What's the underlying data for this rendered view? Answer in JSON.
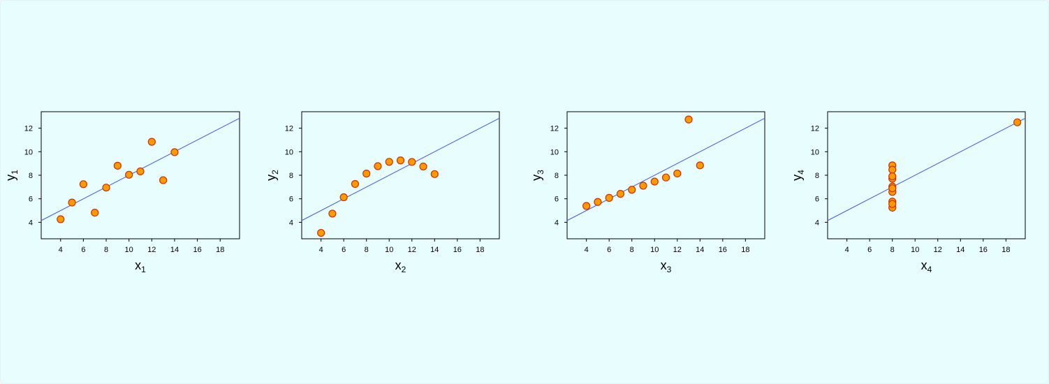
{
  "colors": {
    "background": "#e8fdfd",
    "marker_fill": "#ff9900",
    "marker_stroke": "#cc3300",
    "fit_line": "#4455ff",
    "axes": "#000000"
  },
  "chart_data": [
    {
      "type": "scatter",
      "xlabel": "x",
      "xlabel_sub": "1",
      "ylabel": "y",
      "ylabel_sub": "1",
      "xlim": [
        2.3,
        19.7
      ],
      "ylim": [
        2.6,
        13.4
      ],
      "xticks": [
        4,
        6,
        8,
        10,
        12,
        14,
        16,
        18
      ],
      "yticks": [
        4,
        6,
        8,
        10,
        12
      ],
      "grid": false,
      "x": [
        10,
        8,
        13,
        9,
        11,
        14,
        6,
        4,
        12,
        7,
        5
      ],
      "y": [
        8.04,
        6.95,
        7.58,
        8.81,
        8.33,
        9.96,
        7.24,
        4.26,
        10.84,
        4.82,
        5.68
      ],
      "fit_line": {
        "slope": 0.5,
        "intercept": 3.0
      }
    },
    {
      "type": "scatter",
      "xlabel": "x",
      "xlabel_sub": "2",
      "ylabel": "y",
      "ylabel_sub": "2",
      "xlim": [
        2.3,
        19.7
      ],
      "ylim": [
        2.6,
        13.4
      ],
      "xticks": [
        4,
        6,
        8,
        10,
        12,
        14,
        16,
        18
      ],
      "yticks": [
        4,
        6,
        8,
        10,
        12
      ],
      "grid": false,
      "x": [
        10,
        8,
        13,
        9,
        11,
        14,
        6,
        4,
        12,
        7,
        5
      ],
      "y": [
        9.14,
        8.14,
        8.74,
        8.77,
        9.26,
        8.1,
        6.13,
        3.1,
        9.13,
        7.26,
        4.74
      ],
      "fit_line": {
        "slope": 0.5,
        "intercept": 3.0
      }
    },
    {
      "type": "scatter",
      "xlabel": "x",
      "xlabel_sub": "3",
      "ylabel": "y",
      "ylabel_sub": "3",
      "xlim": [
        2.3,
        19.7
      ],
      "ylim": [
        2.6,
        13.4
      ],
      "xticks": [
        4,
        6,
        8,
        10,
        12,
        14,
        16,
        18
      ],
      "yticks": [
        4,
        6,
        8,
        10,
        12
      ],
      "grid": false,
      "x": [
        10,
        8,
        13,
        9,
        11,
        14,
        6,
        4,
        12,
        7,
        5
      ],
      "y": [
        7.46,
        6.77,
        12.74,
        7.11,
        7.81,
        8.84,
        6.08,
        5.39,
        8.15,
        6.42,
        5.73
      ],
      "fit_line": {
        "slope": 0.5,
        "intercept": 3.0
      }
    },
    {
      "type": "scatter",
      "xlabel": "x",
      "xlabel_sub": "4",
      "ylabel": "y",
      "ylabel_sub": "4",
      "xlim": [
        2.3,
        19.7
      ],
      "ylim": [
        2.6,
        13.4
      ],
      "xticks": [
        4,
        6,
        8,
        10,
        12,
        14,
        16,
        18
      ],
      "yticks": [
        4,
        6,
        8,
        10,
        12
      ],
      "grid": false,
      "x": [
        8,
        8,
        8,
        8,
        8,
        8,
        8,
        19,
        8,
        8,
        8
      ],
      "y": [
        6.58,
        5.76,
        7.71,
        8.84,
        8.47,
        7.04,
        5.25,
        12.5,
        5.56,
        7.91,
        6.89
      ],
      "fit_line": {
        "slope": 0.5,
        "intercept": 3.0
      }
    }
  ]
}
